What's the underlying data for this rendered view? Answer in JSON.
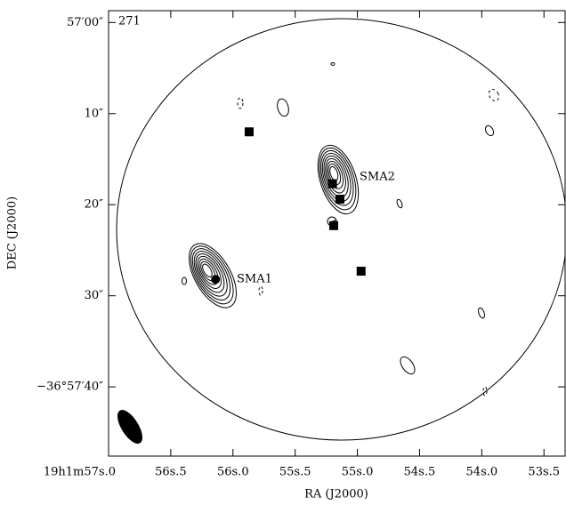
{
  "chart_data": {
    "type": "scatter",
    "xlabel": "RA (J2000)",
    "ylabel": "DEC (J2000)",
    "annotations": [
      {
        "text": "271"
      },
      {
        "text": "SMA1"
      },
      {
        "text": "SMA2"
      }
    ],
    "xlim": [
      57.0,
      53.33
    ],
    "ylim": [
      -1.3,
      47.6
    ],
    "xticks": [
      {
        "value": 57.0,
        "label": "19h1m57s.0"
      },
      {
        "value": 56.5,
        "label": "56s.5"
      },
      {
        "value": 56.0,
        "label": "56s.0"
      },
      {
        "value": 55.5,
        "label": "55s.5"
      },
      {
        "value": 55.0,
        "label": "55s.0"
      },
      {
        "value": 54.5,
        "label": "54s.5"
      },
      {
        "value": 54.0,
        "label": "54s.0"
      },
      {
        "value": 53.5,
        "label": "53s.5"
      }
    ],
    "yticks": [
      {
        "value": 0,
        "label": "57′00″"
      },
      {
        "value": 10,
        "label": "10″"
      },
      {
        "value": 20,
        "label": "20″"
      },
      {
        "value": 30,
        "label": "30″"
      },
      {
        "value": 40,
        "label": "−36°57′40″"
      }
    ],
    "series": [
      {
        "marker": "square",
        "color": "#000000",
        "x": [
          55.87,
          55.2,
          55.14,
          55.19,
          54.97
        ],
        "values": [
          12.0,
          17.7,
          19.4,
          22.3,
          27.3
        ]
      },
      {
        "marker": "circle",
        "color": "#000000",
        "x": [
          56.14
        ],
        "values": [
          28.2
        ]
      }
    ]
  }
}
